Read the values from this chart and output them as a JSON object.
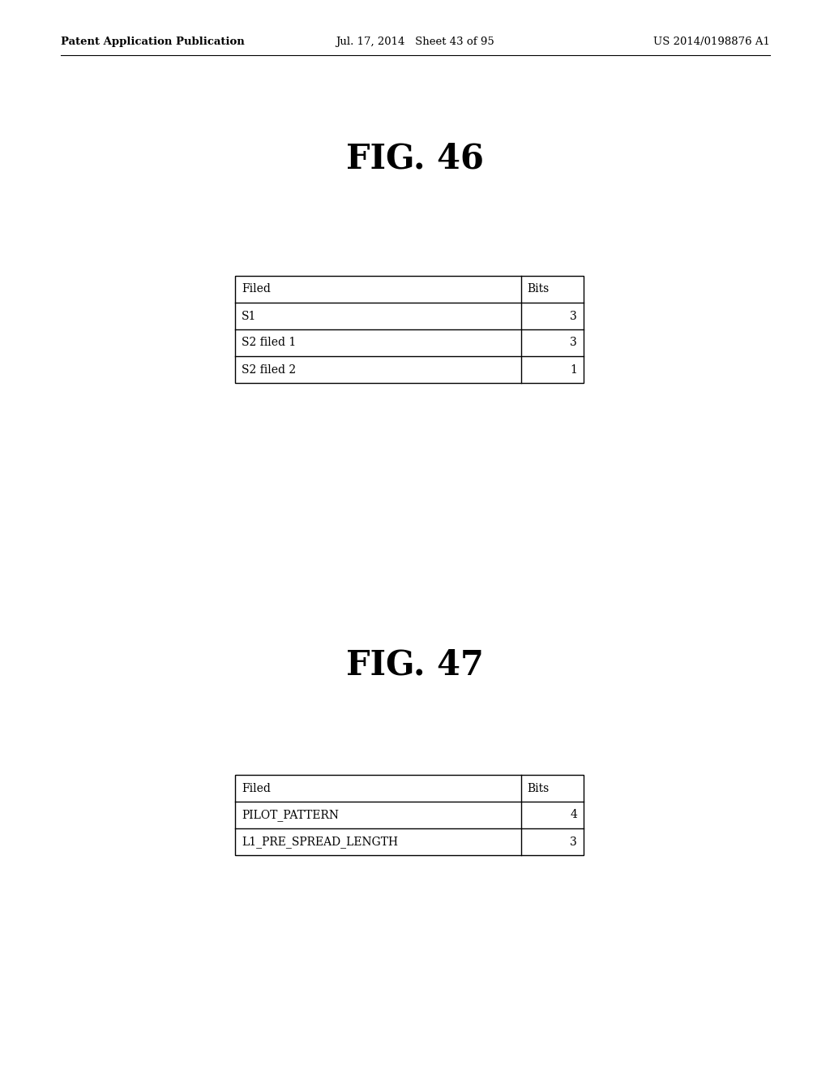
{
  "background_color": "#ffffff",
  "header_text_left": "Patent Application Publication",
  "header_text_center": "Jul. 17, 2014   Sheet 43 of 95",
  "header_text_right": "US 2014/0198876 A1",
  "fig46_title": "FIG. 46",
  "fig47_title": "FIG. 47",
  "table1": {
    "col1_header": "Filed",
    "col2_header": "Bits",
    "rows": [
      [
        "S1",
        "3"
      ],
      [
        "S2 filed 1",
        "3"
      ],
      [
        "S2 filed 2",
        "1"
      ]
    ]
  },
  "table2": {
    "col1_header": "Filed",
    "col2_header": "Bits",
    "rows": [
      [
        "PILOT_PATTERN",
        "4"
      ],
      [
        "L1_PRE_SPREAD_LENGTH",
        "3"
      ]
    ]
  }
}
